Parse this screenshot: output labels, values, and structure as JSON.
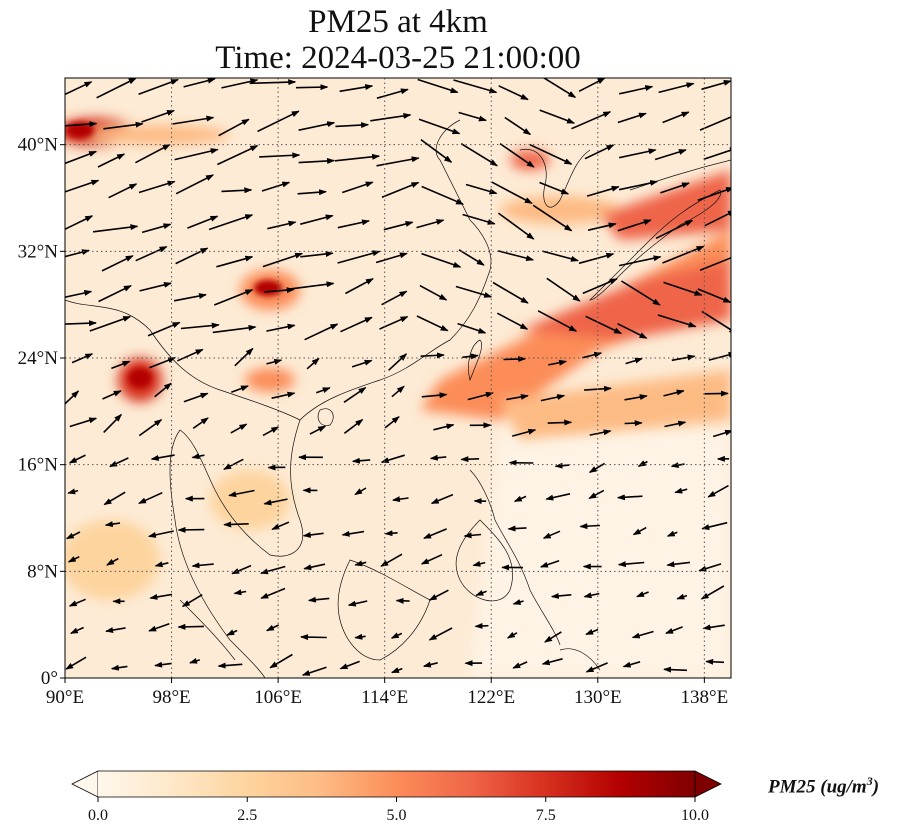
{
  "title": {
    "line1": "PM25 at 4km",
    "line2": "Time: 2024-03-25 21:00:00"
  },
  "map": {
    "lon_range": [
      90,
      140
    ],
    "lat_range": [
      0,
      45
    ],
    "lon_ticks": [
      {
        "value": 90,
        "label": "90°E"
      },
      {
        "value": 98,
        "label": "98°E"
      },
      {
        "value": 106,
        "label": "106°E"
      },
      {
        "value": 114,
        "label": "114°E"
      },
      {
        "value": 122,
        "label": "122°E"
      },
      {
        "value": 130,
        "label": "130°E"
      },
      {
        "value": 138,
        "label": "138°E"
      }
    ],
    "lat_ticks": [
      {
        "value": 0,
        "label": "0°"
      },
      {
        "value": 8,
        "label": "8°N"
      },
      {
        "value": 16,
        "label": "16°N"
      },
      {
        "value": 24,
        "label": "24°N"
      },
      {
        "value": 32,
        "label": "32°N"
      },
      {
        "value": 40,
        "label": "40°N"
      }
    ],
    "gridlines": "dotted",
    "wind_vectors": "black arrows",
    "coastlines": "black thin"
  },
  "colorbar": {
    "colormap": "OrRd",
    "colors": [
      "#fff7ec",
      "#fee8c8",
      "#fdd49e",
      "#fdbb84",
      "#fc8d59",
      "#ef6548",
      "#d7301f",
      "#b30000",
      "#7f0000"
    ],
    "min": 0.0,
    "max": 10.0,
    "extend": "both",
    "ticks": [
      "0.0",
      "2.5",
      "5.0",
      "7.5",
      "10.0"
    ],
    "label": "PM25 (ug/m",
    "label_sup": "3",
    "label_close": ")"
  }
}
